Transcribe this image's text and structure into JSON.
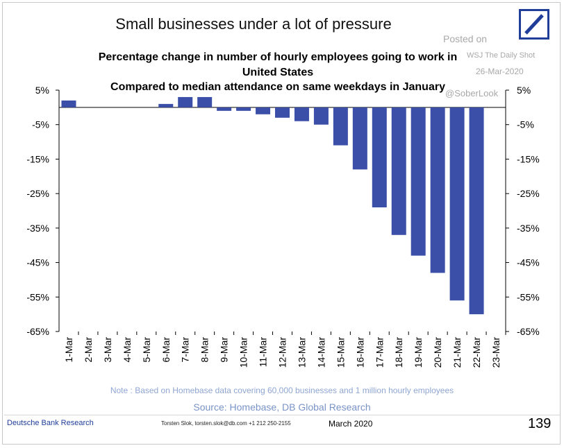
{
  "header": {
    "title": "Small businesses under a lot of pressure",
    "subtitle_line1": "Percentage change in number of hourly employees going to work in",
    "subtitle_line2": "United States",
    "subtitle_line3": "Compared to median attendance on same weekdays in January"
  },
  "watermark": {
    "posted_on": "Posted on",
    "outlet": "WSJ The Daily Shot",
    "date": "26-Mar-2020",
    "handle": "@SoberLook"
  },
  "colors": {
    "bar": "#3b4fa8",
    "logo": "#1f3d99",
    "note": "#8fa6d2",
    "source": "#7a93c7"
  },
  "chart_data": {
    "type": "bar",
    "categories": [
      "1-Mar",
      "2-Mar",
      "3-Mar",
      "4-Mar",
      "5-Mar",
      "6-Mar",
      "7-Mar",
      "8-Mar",
      "9-Mar",
      "10-Mar",
      "11-Mar",
      "12-Mar",
      "13-Mar",
      "14-Mar",
      "15-Mar",
      "16-Mar",
      "17-Mar",
      "18-Mar",
      "19-Mar",
      "20-Mar",
      "21-Mar",
      "22-Mar",
      "23-Mar"
    ],
    "values": [
      2,
      0,
      0,
      0,
      0,
      1,
      3,
      3,
      -1,
      -1,
      -2,
      -3,
      -4,
      -5,
      -11,
      -18,
      -29,
      -37,
      -43,
      -48,
      -56,
      -60,
      null
    ],
    "ylim": [
      -65,
      5
    ],
    "yticks": [
      5,
      -5,
      -15,
      -25,
      -35,
      -45,
      -55,
      -65
    ],
    "ytick_labels": [
      "5%",
      "-5%",
      "-15%",
      "-25%",
      "-35%",
      "-45%",
      "-55%",
      "-65%"
    ],
    "xlabel": "",
    "ylabel": "",
    "grid": false,
    "dual_y_axis": true
  },
  "note": "Note : Based on Homebase data covering 60,000 businesses and 1 million hourly employees",
  "source": "Source:  Homebase, DB Global Research",
  "footer": {
    "brand": "Deutsche Bank Research",
    "contact": "Torsten Slok, torsten.slok@db.com  +1 212 250-2155",
    "date": "March  2020",
    "page": "139"
  }
}
